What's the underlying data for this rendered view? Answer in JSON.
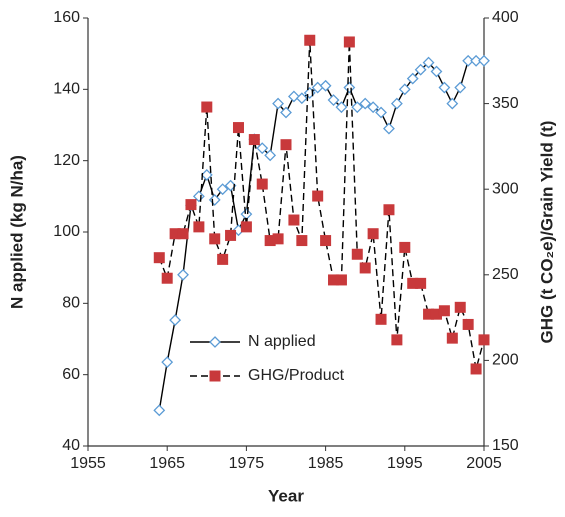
{
  "chart_data": {
    "type": "line",
    "x_label": "Year",
    "y_label": "N applied (kg N/ha)",
    "y2_label": "GHG (t CO₂e)/Grain Yield (t)",
    "x": [
      1964,
      1965,
      1966,
      1967,
      1968,
      1969,
      1970,
      1971,
      1972,
      1973,
      1974,
      1975,
      1976,
      1977,
      1978,
      1979,
      1980,
      1981,
      1982,
      1983,
      1984,
      1985,
      1986,
      1987,
      1988,
      1989,
      1990,
      1991,
      1992,
      1993,
      1994,
      1995,
      1996,
      1997,
      1998,
      1999,
      2000,
      2001,
      2002,
      2003,
      2004,
      2005
    ],
    "xlim": [
      1955,
      2005
    ],
    "xticks": [
      1955,
      1965,
      1975,
      1985,
      1995,
      2005
    ],
    "ylim": [
      40,
      160
    ],
    "yticks": [
      40,
      60,
      80,
      100,
      120,
      140,
      160
    ],
    "y2lim": [
      150,
      400
    ],
    "y2ticks": [
      150,
      200,
      250,
      300,
      350,
      400
    ],
    "legend": "lower-left",
    "series": [
      {
        "name": "N applied",
        "color": "#5b9bd5",
        "line_color": "#000000",
        "marker": "diamond",
        "values": [
          50,
          63.5,
          75.3,
          88,
          107.5,
          110,
          116,
          109,
          112,
          113,
          100.5,
          105,
          126,
          123.5,
          121.5,
          136,
          133.5,
          138,
          137.5,
          139,
          140.5,
          141,
          137,
          135,
          140.5,
          135,
          136,
          135,
          133.5,
          129,
          136,
          140,
          143,
          145.5,
          147.5,
          145,
          140.5,
          136,
          140.5,
          148,
          148,
          148
        ]
      },
      {
        "name": "GHG/Product",
        "color": "#c8393b",
        "line_color": "#000000",
        "marker": "square",
        "axis": "y2",
        "values": [
          260,
          248,
          274,
          274,
          291,
          278,
          348,
          271,
          259,
          273,
          336,
          278,
          329,
          303,
          270,
          271,
          326,
          282,
          270,
          387,
          296,
          270,
          247,
          247,
          386,
          262,
          254,
          274,
          224,
          288,
          212,
          266,
          245,
          245,
          227,
          227,
          229,
          213,
          231,
          221,
          195,
          212
        ]
      }
    ]
  }
}
